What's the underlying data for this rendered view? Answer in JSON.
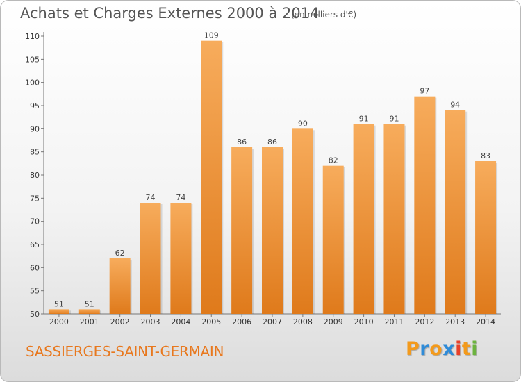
{
  "title": "Achats et Charges Externes 2000 à 2014",
  "subtitle": "(en milliers d'€)",
  "city": "SASSIERGES-SAINT-GERMAIN",
  "logo": {
    "text": "Proxiti",
    "letter_colors": [
      "#f39a1c",
      "#2e8bd8",
      "#f39a1c",
      "#2e8bd8",
      "#e8402a",
      "#f39a1c",
      "#6cb33f"
    ]
  },
  "colors": {
    "bar_light": "#f6aa5a",
    "bar_dark": "#e07b1c",
    "axis": "#777777",
    "grid": "#cccccc"
  },
  "chart_data": {
    "type": "bar",
    "title": "Achats et Charges Externes 2000 à 2014",
    "subtitle": "(en milliers d'€)",
    "categories": [
      "2000",
      "2001",
      "2002",
      "2003",
      "2004",
      "2005",
      "2006",
      "2007",
      "2008",
      "2009",
      "2010",
      "2011",
      "2012",
      "2013",
      "2014"
    ],
    "values": [
      51,
      51,
      62,
      74,
      74,
      109,
      86,
      86,
      90,
      82,
      91,
      91,
      97,
      94,
      83
    ],
    "ylim": [
      50,
      110
    ],
    "yticks": [
      50,
      55,
      60,
      65,
      70,
      75,
      80,
      85,
      90,
      95,
      100,
      105,
      110
    ],
    "grid": false,
    "xlabel": "",
    "ylabel": ""
  }
}
